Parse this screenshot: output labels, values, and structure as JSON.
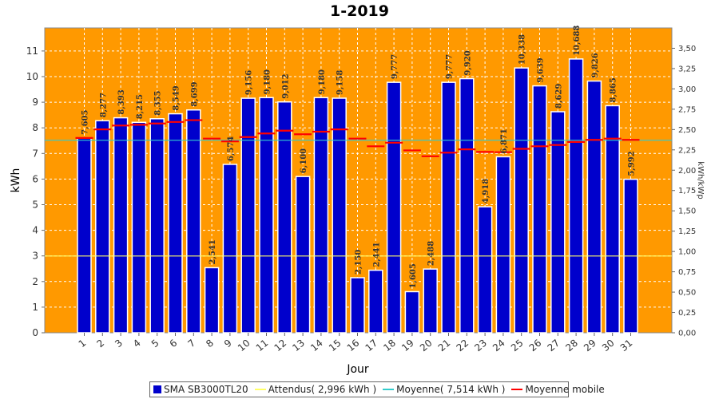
{
  "chart_data": {
    "type": "bar",
    "title": "1-2019",
    "xlabel": "Jour",
    "ylabel": "kWh",
    "ylabel_right": "kWh/kWp",
    "ylim": [
      0,
      11.9
    ],
    "yticks": [
      "0",
      "1",
      "2",
      "3",
      "4",
      "5",
      "6",
      "7",
      "8",
      "9",
      "10",
      "11"
    ],
    "yticks_right": [
      "0,00",
      "0,25",
      "0,50",
      "0,75",
      "1,00",
      "1,25",
      "1,50",
      "1,75",
      "2,00",
      "2,25",
      "2,50",
      "2,75",
      "3,00",
      "3,25",
      "3,50"
    ],
    "categories": [
      "1",
      "2",
      "3",
      "4",
      "5",
      "6",
      "7",
      "8",
      "9",
      "10",
      "11",
      "12",
      "13",
      "14",
      "15",
      "16",
      "17",
      "18",
      "19",
      "20",
      "21",
      "22",
      "23",
      "24",
      "25",
      "26",
      "27",
      "28",
      "29",
      "30",
      "31"
    ],
    "series": [
      {
        "name": "SMA SB3000TL20",
        "color": "#0000cc",
        "values": [
          7.605,
          8.277,
          8.393,
          8.215,
          8.355,
          8.549,
          8.699,
          2.541,
          6.574,
          9.156,
          9.18,
          9.012,
          6.1,
          9.18,
          9.158,
          2.15,
          2.441,
          9.777,
          1.605,
          2.488,
          9.777,
          9.92,
          4.918,
          6.871,
          10.338,
          9.639,
          8.629,
          10.688,
          9.826,
          8.865,
          5.992
        ],
        "value_labels": [
          "7,605",
          "8,277",
          "8,393",
          "8,215",
          "8,355",
          "8,549",
          "8,699",
          "2,541",
          "6,574",
          "9,156",
          "9,180",
          "9,012",
          "6,100",
          "9,180",
          "9,158",
          "2,150",
          "2,441",
          "9,777",
          "1,605",
          "2,488",
          "9,777",
          "9,920",
          "4,918",
          "6,871",
          "10,338",
          "9,639",
          "8,629",
          "10,688",
          "9,826",
          "8,865",
          "5,992"
        ]
      },
      {
        "name": "Attendus( 2,996 kWh )",
        "color": "#ffff66",
        "value": 2.996
      },
      {
        "name": "Moyenne( 7,514 kWh )",
        "color": "#33cccc",
        "value": 7.514
      },
      {
        "name": "Moyenne mobile",
        "color": "#ff0000",
        "values": [
          7.605,
          7.94,
          8.09,
          8.12,
          8.17,
          8.23,
          8.3,
          7.58,
          7.47,
          7.64,
          7.78,
          7.89,
          7.75,
          7.85,
          7.94,
          7.58,
          7.28,
          7.42,
          7.12,
          6.89,
          7.03,
          7.16,
          7.06,
          7.05,
          7.18,
          7.28,
          7.33,
          7.45,
          7.53,
          7.58,
          7.53
        ]
      }
    ],
    "grid": true,
    "background": "#ff9900",
    "legend_position": "bottom"
  }
}
